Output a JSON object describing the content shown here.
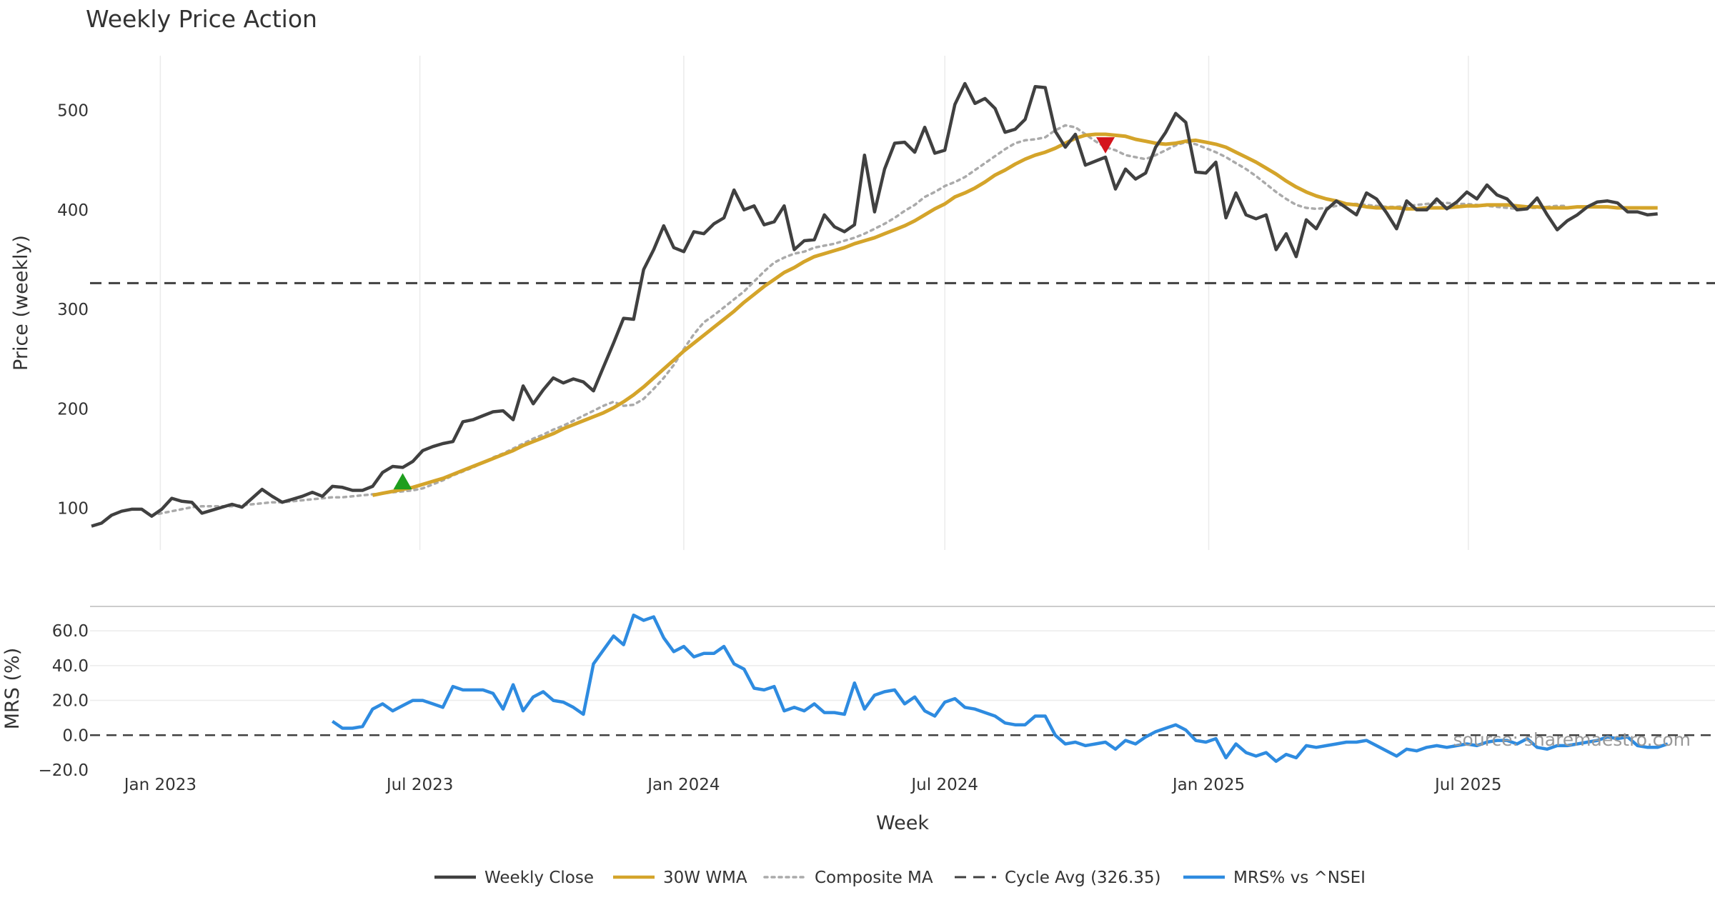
{
  "title": "Weekly Price Action",
  "source": "source: sharemaestro.com",
  "colors": {
    "close": "#404040",
    "wma": "#D4A42A",
    "composite": "#AAAAAA",
    "cycle": "#404040",
    "mrs": "#2E8BE0",
    "buy": "#1E9E1E",
    "sell": "#D4141C"
  },
  "chart_data": [
    {
      "type": "line",
      "panel": "price",
      "title": "Weekly Price Action",
      "xlabel": "",
      "ylabel": "Price (weekly)",
      "x_axis": "date",
      "xlim": [
        "2022-11-13",
        "2025-12-20"
      ],
      "ylim": [
        58,
        555
      ],
      "yticks": [
        100,
        200,
        300,
        400,
        500
      ],
      "xticks": [
        {
          "date": "2023-01-01",
          "label": "Jan 2023"
        },
        {
          "date": "2023-07-01",
          "label": "Jul 2023"
        },
        {
          "date": "2024-01-01",
          "label": "Jan 2024"
        },
        {
          "date": "2024-07-01",
          "label": "Jul 2024"
        },
        {
          "date": "2025-01-01",
          "label": "Jan 2025"
        },
        {
          "date": "2025-07-01",
          "label": "Jul 2025"
        }
      ],
      "grid": "vertical",
      "start_date": "2022-11-14",
      "series": [
        {
          "name": "Weekly Close",
          "values": [
            82,
            85,
            93,
            97,
            99,
            99,
            92,
            99,
            110,
            107,
            106,
            95,
            98,
            101,
            104,
            101,
            110,
            119,
            112,
            106,
            109,
            112,
            116,
            112,
            122,
            121,
            118,
            118,
            122,
            136,
            142,
            141,
            147,
            158,
            162,
            165,
            167,
            187,
            189,
            193,
            197,
            198,
            189,
            223,
            205,
            219,
            231,
            226,
            230,
            227,
            218,
            242,
            266,
            291,
            290,
            340,
            360,
            384,
            362,
            358,
            378,
            376,
            386,
            392,
            420,
            400,
            404,
            385,
            388,
            404,
            360,
            369,
            370,
            395,
            383,
            378,
            385,
            455,
            398,
            441,
            467,
            468,
            458,
            483,
            457,
            460,
            506,
            527,
            507,
            512,
            502,
            478,
            481,
            491,
            524,
            523,
            479,
            463,
            476,
            445,
            449,
            453,
            421,
            441,
            431,
            437,
            463,
            478,
            497,
            488,
            438,
            437,
            448,
            392,
            417,
            395,
            391,
            395,
            360,
            376,
            353,
            390,
            381,
            400,
            409,
            402,
            395,
            417,
            411,
            397,
            381,
            409,
            400,
            400,
            411,
            401,
            408,
            418,
            411,
            425,
            415,
            411,
            400,
            401,
            412,
            395,
            380,
            389,
            395,
            403,
            408,
            409,
            407,
            398,
            398,
            395,
            396
          ]
        },
        {
          "name": "30W WMA",
          "start_date": "2023-05-29",
          "values": [
            113,
            115,
            117,
            119,
            121,
            124,
            127,
            130,
            134,
            138,
            142,
            146,
            150,
            154,
            158,
            163,
            167,
            171,
            175,
            180,
            184,
            188,
            192,
            196,
            201,
            207,
            214,
            222,
            231,
            240,
            249,
            258,
            266,
            274,
            282,
            290,
            298,
            307,
            315,
            323,
            330,
            337,
            342,
            348,
            353,
            356,
            359,
            362,
            366,
            369,
            372,
            376,
            380,
            384,
            389,
            395,
            401,
            406,
            413,
            417,
            422,
            428,
            435,
            440,
            446,
            451,
            455,
            458,
            462,
            467,
            472,
            475,
            476,
            476,
            475,
            474,
            471,
            469,
            467,
            466,
            467,
            469,
            470,
            468,
            466,
            463,
            458,
            453,
            448,
            442,
            436,
            429,
            423,
            418,
            414,
            411,
            409,
            406,
            405,
            403,
            402,
            402,
            402,
            401,
            401,
            402,
            402,
            402,
            403,
            404,
            404,
            405,
            405,
            405,
            404,
            403,
            403,
            402,
            402,
            402,
            403,
            403,
            403,
            403,
            402,
            402,
            402,
            402,
            402
          ]
        },
        {
          "name": "Composite MA",
          "start_date": "2022-12-26",
          "values": [
            93,
            95,
            97,
            99,
            101,
            102,
            102,
            102,
            102,
            103,
            104,
            105,
            106,
            106,
            107,
            108,
            109,
            110,
            111,
            111,
            112,
            113,
            114,
            115,
            116,
            117,
            118,
            120,
            124,
            128,
            133,
            137,
            141,
            146,
            151,
            155,
            160,
            165,
            170,
            174,
            179,
            183,
            188,
            193,
            198,
            203,
            207,
            203,
            204,
            210,
            220,
            231,
            244,
            260,
            275,
            287,
            294,
            302,
            310,
            318,
            328,
            338,
            347,
            352,
            356,
            358,
            362,
            364,
            366,
            369,
            372,
            376,
            381,
            386,
            392,
            399,
            405,
            413,
            418,
            424,
            428,
            433,
            440,
            447,
            454,
            461,
            467,
            470,
            471,
            473,
            480,
            485,
            483,
            476,
            469,
            463,
            460,
            455,
            453,
            451,
            455,
            460,
            465,
            468,
            466,
            462,
            458,
            453,
            447,
            441,
            434,
            426,
            418,
            411,
            405,
            402,
            401,
            402,
            404,
            406,
            406,
            405,
            404,
            403,
            403,
            404,
            405,
            406,
            407,
            407,
            406,
            406,
            405,
            404,
            403,
            402,
            401,
            402,
            402,
            403,
            404,
            404
          ]
        },
        {
          "name": "Cycle Avg (326.35)",
          "value": 326.35
        }
      ],
      "markers": [
        {
          "type": "buy",
          "date": "2023-06-19",
          "value": 126
        },
        {
          "type": "sell",
          "date": "2024-10-21",
          "value": 466
        }
      ]
    },
    {
      "type": "line",
      "panel": "mrs",
      "xlabel": "Week",
      "ylabel": "MRS (%)",
      "x_axis": "date",
      "xlim": [
        "2022-11-13",
        "2025-12-20"
      ],
      "ylim": [
        -20,
        74
      ],
      "yticks": [
        {
          "value": 60,
          "label": "60.0"
        },
        {
          "value": 40,
          "label": "40.0"
        },
        {
          "value": 20,
          "label": "20.0"
        },
        {
          "value": 0,
          "label": "0.0"
        },
        {
          "value": -20,
          "label": "−20.0"
        }
      ],
      "grid": "horizontal",
      "zero_line": 0,
      "start_date": "2023-05-01",
      "series": [
        {
          "name": "MRS% vs ^NSEI",
          "values": [
            8,
            4,
            4,
            5,
            15,
            18,
            14,
            17,
            20,
            20,
            18,
            16,
            28,
            26,
            26,
            26,
            24,
            15,
            29,
            14,
            22,
            25,
            20,
            19,
            16,
            12,
            41,
            49,
            57,
            52,
            69,
            66,
            68,
            56,
            48,
            51,
            45,
            47,
            47,
            51,
            41,
            38,
            27,
            26,
            28,
            14,
            16,
            14,
            18,
            13,
            13,
            12,
            30,
            15,
            23,
            25,
            26,
            18,
            22,
            14,
            11,
            19,
            21,
            16,
            15,
            13,
            11,
            7,
            6,
            6,
            11,
            11,
            0,
            -5,
            -4,
            -6,
            -5,
            -4,
            -8,
            -3,
            -5,
            -1,
            2,
            4,
            6,
            3,
            -3,
            -4,
            -2,
            -13,
            -5,
            -10,
            -12,
            -10,
            -15,
            -11,
            -13,
            -6,
            -7,
            -6,
            -5,
            -4,
            -4,
            -3,
            -6,
            -9,
            -12,
            -8,
            -9,
            -7,
            -6,
            -7,
            -6,
            -5,
            -6,
            -4,
            -3,
            -3,
            -5,
            -2,
            -7,
            -8,
            -6,
            -6,
            -5,
            -4,
            -3,
            -1,
            -2,
            -1,
            -6,
            -7,
            -7,
            -5
          ]
        }
      ]
    }
  ],
  "legend": [
    {
      "label": "Weekly Close",
      "style": "solid",
      "color": "#404040"
    },
    {
      "label": "30W WMA",
      "style": "solid",
      "color": "#D4A42A"
    },
    {
      "label": "Composite MA",
      "style": "dotted",
      "color": "#AAAAAA"
    },
    {
      "label": "Cycle Avg (326.35)",
      "style": "dashed",
      "color": "#404040"
    },
    {
      "label": "MRS% vs ^NSEI",
      "style": "solid",
      "color": "#2E8BE0"
    }
  ]
}
